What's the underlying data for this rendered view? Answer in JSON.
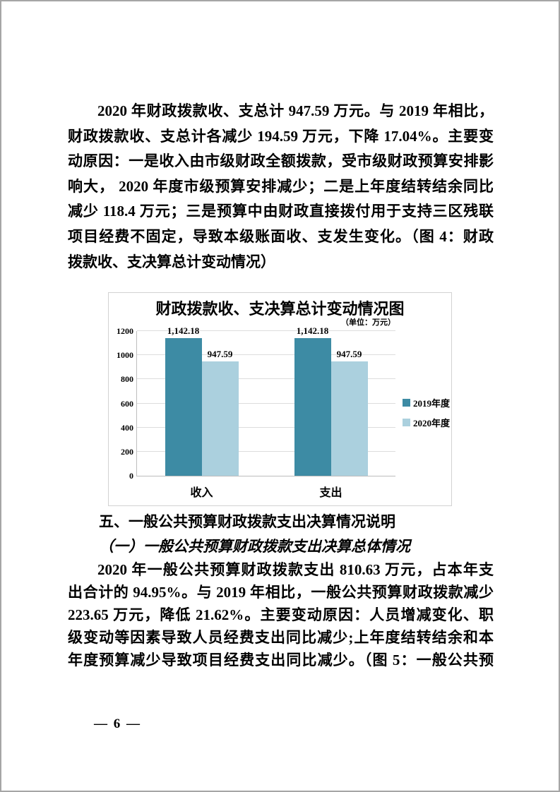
{
  "page": {
    "number_label": "— 6 —"
  },
  "paragraph1": {
    "lines": [
      "2020 年财政拨款收、支总计 947.59 万元。与 2019 年相比，",
      "财政拨款收、支总计各减少 194.59 万元，下降 17.04%。主要变",
      "动原因：一是收入由市级财政全额拨款，受市级财政预算安排影",
      "响大， 2020 年度市级预算安排减少；二是上年度结转结余同比",
      "减少 118.4 万元；三是预算中由财政直接拨付用于支持三区残联",
      "项目经费不固定，导致本级账面收、支发生变化。（图 4：财政",
      "拨款收、支决算总计变动情况）"
    ]
  },
  "section": {
    "heading": "五、一般公共预算财政拨款支出决算情况说明",
    "subheading": "（一）一般公共预算财政拨款支出决算总体情况"
  },
  "paragraph2": {
    "lines": [
      "2020 年一般公共预算财政拨款支出 810.63 万元，占本年支",
      "出合计的 94.95%。与 2019 年相比，一般公共预算财政拨款减少",
      "223.65 万元，降低 21.62%。主要变动原因：人员增减变化、职",
      "级变动等因素导致人员经费支出同比减少;上年度结转结余和本",
      "年度预算减少导致项目经费支出同比减少。（图 5：一般公共预"
    ]
  },
  "chart_data": {
    "type": "bar",
    "title": "财政拨款收、支决算总计变动情况图",
    "unit_label": "（单位：万元）",
    "categories": [
      "收入",
      "支出"
    ],
    "series": [
      {
        "name": "2019年度",
        "values": [
          1142.18,
          1142.18
        ],
        "display_values": [
          "1,142.18",
          "1,142.18"
        ],
        "color": "#3d8ba4"
      },
      {
        "name": "2020年度",
        "values": [
          947.59,
          947.59
        ],
        "display_values": [
          "947.59",
          "947.59"
        ],
        "color": "#abd0de"
      }
    ],
    "xlabel": "",
    "ylabel": "",
    "ylim": [
      0,
      1200
    ],
    "yticks": [
      0,
      200,
      400,
      600,
      800,
      1000,
      1200
    ],
    "grid": true,
    "legend_position": "right",
    "gridline_color": "#dcdcdc",
    "axis_color": "#bdbdbd"
  }
}
